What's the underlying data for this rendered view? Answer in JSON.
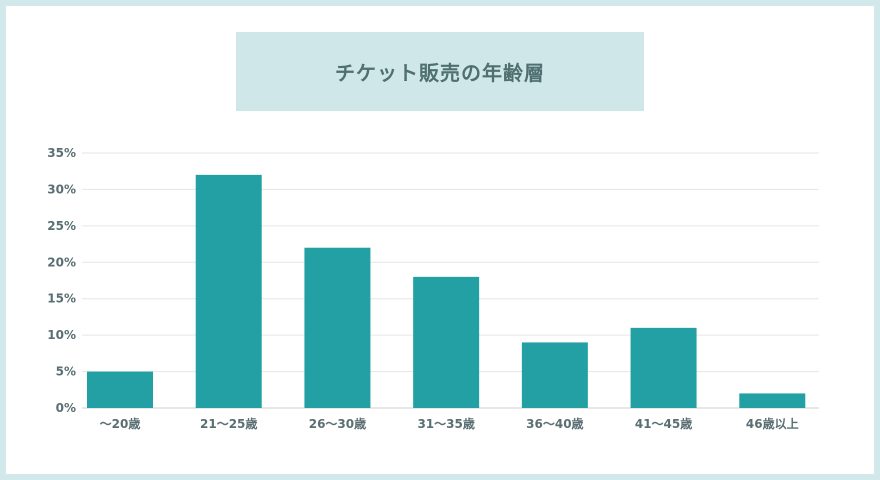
{
  "chart_data": {
    "type": "bar",
    "title": "チケット販売の年齢層",
    "categories": [
      "〜20歳",
      "21〜25歳",
      "26〜30歳",
      "31〜35歳",
      "36〜40歳",
      "41〜45歳",
      "46歳以上"
    ],
    "values": [
      5,
      32,
      22,
      18,
      9,
      11,
      2
    ],
    "ylim": [
      0,
      35
    ],
    "yticks": [
      0,
      5,
      10,
      15,
      20,
      25,
      30,
      35
    ],
    "ytick_labels": [
      "0%",
      "5%",
      "10%",
      "15%",
      "20%",
      "25%",
      "30%",
      "35%"
    ],
    "grid": true,
    "bar_color": "#22a0a3",
    "grid_color": "#e6e6e6",
    "axis_color": "#cfcfcf",
    "title_bg": "#cfe7e8"
  }
}
